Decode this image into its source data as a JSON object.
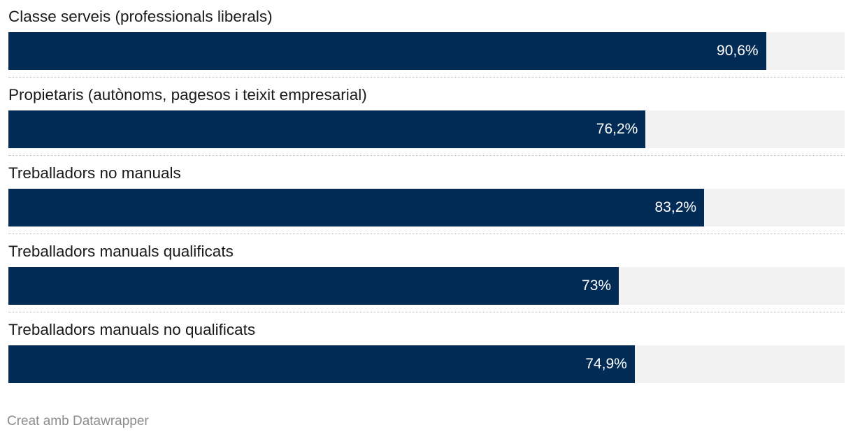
{
  "chart_data": {
    "type": "bar",
    "orientation": "horizontal",
    "categories": [
      "Classe serveis (professionals liberals)",
      "Propietaris (autònoms, pagesos i teixit empresarial)",
      "Treballadors no manuals",
      "Treballadors manuals qualificats",
      "Treballadors manuals no qualificats"
    ],
    "values": [
      90.6,
      76.2,
      83.2,
      73,
      74.9
    ],
    "value_labels": [
      "90,6%",
      "76,2%",
      "83,2%",
      "73%",
      "74,9%"
    ],
    "xlim": [
      0,
      100
    ],
    "unit": "%",
    "bar_color": "#022c55",
    "track_color": "#f2f2f2",
    "grid": false
  },
  "footer": {
    "credit": "Creat amb Datawrapper"
  }
}
